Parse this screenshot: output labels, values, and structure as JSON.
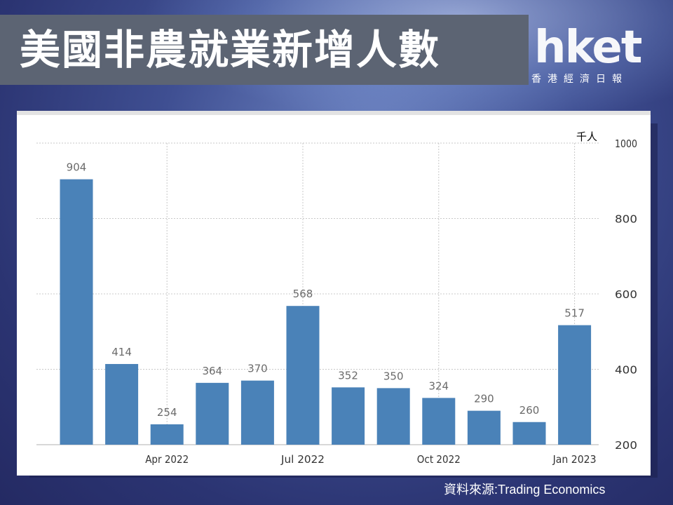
{
  "header": {
    "title": "美國非農就業新增人數"
  },
  "logo": {
    "word": "hket",
    "subtitle": "香港經濟日報"
  },
  "source_text": "資料來源:Trading Economics",
  "colors": {
    "bar": "#4a82b8",
    "title_bar": "#5c6473"
  },
  "chart_data": {
    "type": "bar",
    "ylabel": "千人",
    "ylim": [
      200,
      1000
    ],
    "yticks": [
      200,
      400,
      600,
      800,
      1000
    ],
    "values": [
      904,
      414,
      254,
      364,
      370,
      568,
      352,
      350,
      324,
      290,
      260,
      517
    ],
    "x_tick_labels": [
      {
        "label": "Apr 2022",
        "index": 2
      },
      {
        "label": "Jul 2022",
        "index": 5
      },
      {
        "label": "Oct 2022",
        "index": 8
      },
      {
        "label": "Jan 2023",
        "index": 11
      }
    ],
    "grid": true,
    "y_axis_side": "right"
  }
}
